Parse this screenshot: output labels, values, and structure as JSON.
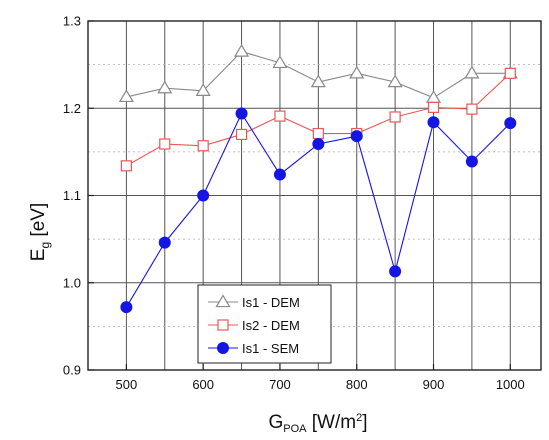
{
  "chart_data": {
    "type": "line",
    "xlabel_main": "G",
    "xlabel_sub": "POA",
    "xlabel_unit_pre": " [W/m",
    "xlabel_unit_sup": "2",
    "xlabel_unit_post": "]",
    "ylabel_main": "E",
    "ylabel_sub": "g",
    "ylabel_unit": " [eV]",
    "xlim": [
      450,
      1040
    ],
    "ylim": [
      0.9,
      1.3
    ],
    "x_ticks": [
      "500",
      "600",
      "700",
      "800",
      "900",
      "1000"
    ],
    "y_ticks": [
      "0.9",
      "1.0",
      "1.1",
      "1.2",
      "1.3"
    ],
    "x_tick_values": [
      500,
      600,
      700,
      800,
      900,
      1000
    ],
    "y_tick_values": [
      0.9,
      1.0,
      1.1,
      1.2,
      1.3
    ],
    "x_grid_values": [
      500,
      550,
      600,
      650,
      700,
      750,
      800,
      850,
      900,
      950,
      1000
    ],
    "y_grid_values": [
      0.95,
      1.05,
      1.15,
      1.25
    ],
    "grid": true,
    "legend_position": "bottom-left",
    "x": [
      500,
      550,
      600,
      650,
      700,
      750,
      800,
      850,
      900,
      950,
      1000
    ],
    "series": [
      {
        "name": "Is1 - DEM",
        "color": "#888888",
        "marker": "triangle-open",
        "values": [
          1.213,
          1.223,
          1.22,
          1.265,
          1.252,
          1.23,
          1.24,
          1.23,
          1.212,
          1.24,
          1.24
        ]
      },
      {
        "name": "Is2 - DEM",
        "color": "#ee5555",
        "marker": "square-open",
        "values": [
          1.134,
          1.159,
          1.157,
          1.17,
          1.191,
          1.171,
          1.171,
          1.19,
          1.201,
          1.199,
          1.24
        ]
      },
      {
        "name": "Is1 - SEM",
        "color": "#1515e6",
        "marker": "circle-filled",
        "values": [
          0.972,
          1.046,
          1.1,
          1.194,
          1.124,
          1.159,
          1.168,
          1.013,
          1.184,
          1.139,
          1.183
        ]
      }
    ]
  }
}
